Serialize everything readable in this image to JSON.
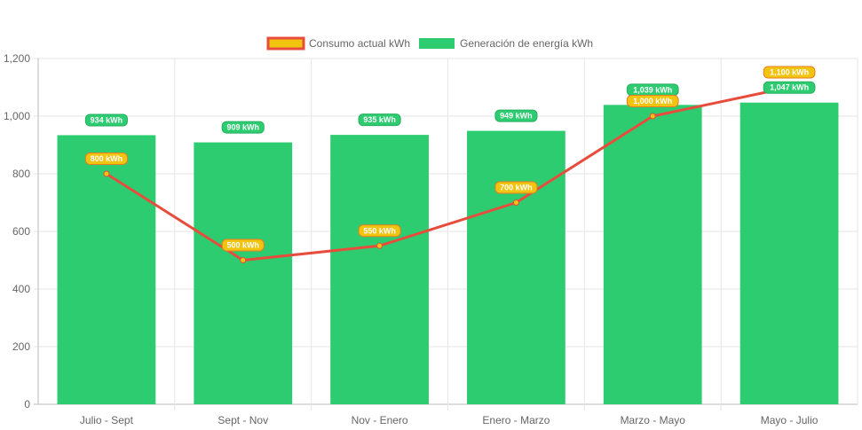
{
  "chart_data": {
    "type": "bar",
    "title": "",
    "xlabel": "",
    "ylabel": "",
    "ylim": [
      0,
      1200
    ],
    "y_ticks": [
      "0",
      "200",
      "400",
      "600",
      "800",
      "1,000",
      "1,200"
    ],
    "categories": [
      "Julio - Sept",
      "Sept - Nov",
      "Nov - Enero",
      "Enero - Marzo",
      "Marzo - Mayo",
      "Mayo - Julio"
    ],
    "legend_position": "top-center",
    "grid": true,
    "series": [
      {
        "name": "Consumo actual kWh",
        "type": "line",
        "color": "#e74c3c",
        "fill": "#f1c40f",
        "values": [
          800,
          500,
          550,
          700,
          1000,
          1100
        ],
        "labels": [
          "800 kWh",
          "500 kWh",
          "550 kWh",
          "700 kWh",
          "1,000 kWh",
          "1,100 kWh"
        ]
      },
      {
        "name": "Generación de energía kWh",
        "type": "bar",
        "color": "#2ecc71",
        "values": [
          934,
          909,
          935,
          949,
          1039,
          1047
        ],
        "labels": [
          "934 kWh",
          "909 kWh",
          "935 kWh",
          "949 kWh",
          "1,039 kWh",
          "1,047 kWh"
        ]
      }
    ]
  }
}
